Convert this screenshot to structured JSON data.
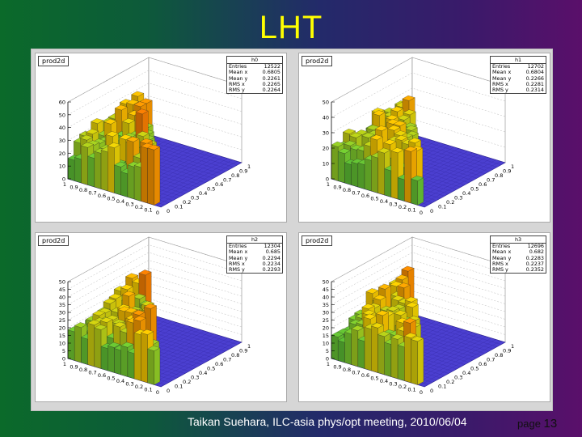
{
  "slide": {
    "title": "LHT",
    "footer": "Taikan Suehara, ILC-asia phys/opt meeting, 2010/06/04",
    "page_label": "page",
    "page_number": "13"
  },
  "colors": {
    "title": "#ffff00",
    "floor": "#4b3fd0",
    "low": "#33aa33",
    "mid": "#ffd400",
    "high": "#e01010"
  },
  "chart_data": [
    {
      "type": "lego3d",
      "pad_label": "prod2d",
      "hist_name": "h0",
      "stats": [
        [
          "Entries",
          "12522"
        ],
        [
          "Mean x",
          "0.6805"
        ],
        [
          "Mean y",
          "0.2261"
        ],
        [
          "RMS x",
          "0.2265"
        ],
        [
          "RMS y",
          "0.2264"
        ]
      ],
      "z_ticks": [
        0,
        10,
        20,
        30,
        40,
        50,
        60
      ],
      "x_ticks": [
        "1",
        "0.9",
        "0.8",
        "0.7",
        "0.6",
        "0.5",
        "0.4",
        "0.3",
        "0.2",
        "0.1",
        "0"
      ],
      "y_ticks": [
        "0",
        "0.1",
        "0.2",
        "0.3",
        "0.4",
        "0.5",
        "0.6",
        "0.7",
        "0.8",
        "0.9",
        "1"
      ]
    },
    {
      "type": "lego3d",
      "pad_label": "prod2d",
      "hist_name": "h1",
      "stats": [
        [
          "Entries",
          "12702"
        ],
        [
          "Mean x",
          "0.6804"
        ],
        [
          "Mean y",
          "0.2266"
        ],
        [
          "RMS x",
          "0.2281"
        ],
        [
          "RMS y",
          "0.2314"
        ]
      ],
      "z_ticks": [
        0,
        10,
        20,
        30,
        40,
        50
      ],
      "x_ticks": [
        "1",
        "0.9",
        "0.8",
        "0.7",
        "0.6",
        "0.5",
        "0.4",
        "0.3",
        "0.2",
        "0.1",
        "0"
      ],
      "y_ticks": [
        "0",
        "0.1",
        "0.2",
        "0.3",
        "0.4",
        "0.5",
        "0.6",
        "0.7",
        "0.8",
        "0.9",
        "1"
      ]
    },
    {
      "type": "lego3d",
      "pad_label": "prod2d",
      "hist_name": "h2",
      "stats": [
        [
          "Entries",
          "12304"
        ],
        [
          "Mean x",
          "0.685"
        ],
        [
          "Mean y",
          "0.2294"
        ],
        [
          "RMS x",
          "0.2234"
        ],
        [
          "RMS y",
          "0.2293"
        ]
      ],
      "z_ticks": [
        0,
        5,
        10,
        15,
        20,
        25,
        30,
        35,
        40,
        45,
        50
      ],
      "x_ticks": [
        "1",
        "0.9",
        "0.8",
        "0.7",
        "0.6",
        "0.5",
        "0.4",
        "0.3",
        "0.2",
        "0.1",
        "0"
      ],
      "y_ticks": [
        "0",
        "0.1",
        "0.2",
        "0.3",
        "0.4",
        "0.5",
        "0.6",
        "0.7",
        "0.8",
        "0.9",
        "1"
      ]
    },
    {
      "type": "lego3d",
      "pad_label": "prod2d",
      "hist_name": "h3",
      "stats": [
        [
          "Entries",
          "12696"
        ],
        [
          "Mean x",
          "0.682"
        ],
        [
          "Mean y",
          "0.2283"
        ],
        [
          "RMS x",
          "0.2237"
        ],
        [
          "RMS y",
          "0.2352"
        ]
      ],
      "z_ticks": [
        0,
        5,
        10,
        15,
        20,
        25,
        30,
        35,
        40,
        45,
        50
      ],
      "x_ticks": [
        "1",
        "0.9",
        "0.8",
        "0.7",
        "0.6",
        "0.5",
        "0.4",
        "0.3",
        "0.2",
        "0.1",
        "0"
      ],
      "y_ticks": [
        "0",
        "0.1",
        "0.2",
        "0.3",
        "0.4",
        "0.5",
        "0.6",
        "0.7",
        "0.8",
        "0.9",
        "1"
      ]
    }
  ]
}
